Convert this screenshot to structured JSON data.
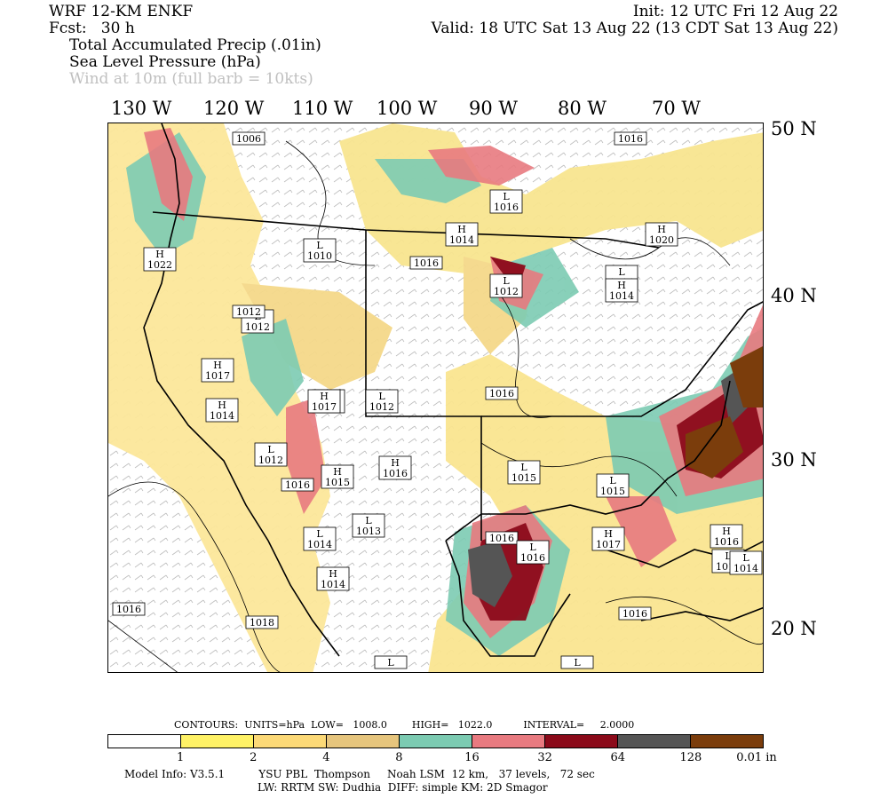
{
  "header": {
    "model": "WRF 12-KM ENKF",
    "forecast": "Fcst:   30 h",
    "init": "Init: 12 UTC Fri 12 Aug 22",
    "valid": "Valid: 18 UTC Sat 13 Aug 22 (13 CDT Sat 13 Aug 22)",
    "fields": [
      "Total Accumulated Precip (.01in)",
      "Sea Level Pressure (hPa)",
      "Wind at 10m (full barb = 10kts)"
    ]
  },
  "axes": {
    "longitudes": [
      "130 W",
      "120 W",
      "110 W",
      "100 W",
      "90 W",
      "80 W",
      "70 W"
    ],
    "latitudes": [
      "50 N",
      "40 N",
      "30 N",
      "20 N"
    ]
  },
  "pressure_centers": [
    {
      "type": "",
      "value": "1006"
    },
    {
      "type": "",
      "value": "1016"
    },
    {
      "type": "L",
      "value": "1016"
    },
    {
      "type": "H",
      "value": "1014"
    },
    {
      "type": "H",
      "value": "1020"
    },
    {
      "type": "H",
      "value": "1022"
    },
    {
      "type": "L",
      "value": "1010"
    },
    {
      "type": "",
      "value": "1016"
    },
    {
      "type": "L",
      "value": "1014"
    },
    {
      "type": "L",
      "value": "1012"
    },
    {
      "type": "L",
      "value": "1012"
    },
    {
      "type": "",
      "value": "1012"
    },
    {
      "type": "H",
      "value": "1014"
    },
    {
      "type": "H",
      "value": "1017"
    },
    {
      "type": "L",
      "value": "1012"
    },
    {
      "type": "",
      "value": "1016"
    },
    {
      "type": "H",
      "value": "1014"
    },
    {
      "type": "L",
      "value": "1012"
    },
    {
      "type": "H",
      "value": "1017"
    },
    {
      "type": "H",
      "value": "1016"
    },
    {
      "type": "L",
      "value": "1015"
    },
    {
      "type": "L",
      "value": "1015"
    },
    {
      "type": "",
      "value": "1016"
    },
    {
      "type": "H",
      "value": "1015"
    },
    {
      "type": "L",
      "value": "1013"
    },
    {
      "type": "H",
      "value": "1014"
    },
    {
      "type": "H",
      "value": "1017"
    },
    {
      "type": "",
      "value": "1016"
    },
    {
      "type": "L",
      "value": "1016"
    },
    {
      "type": "L",
      "value": "1014"
    },
    {
      "type": "",
      "value": "1016"
    },
    {
      "type": "",
      "value": "1018"
    },
    {
      "type": "",
      "value": "1016"
    },
    {
      "type": "L",
      "value": "1014"
    },
    {
      "type": "L",
      "value": ""
    },
    {
      "type": "L",
      "value": ""
    },
    {
      "type": "L",
      "value": "1012"
    },
    {
      "type": "L",
      "value": "1014"
    },
    {
      "type": "H",
      "value": "1016"
    }
  ],
  "contours_info": "CONTOURS:  UNITS=hPa  LOW=   1008.0        HIGH=   1022.0          INTERVAL=     2.0000",
  "colorbar": {
    "colors": [
      "#ffffff",
      "#fff266",
      "#fcd977",
      "#e6c57d",
      "#7ccbb2",
      "#e87a80",
      "#8b0a1a",
      "#555555",
      "#7b3d0c"
    ],
    "labels": [
      "1",
      "2",
      "4",
      "8",
      "16",
      "32",
      "64",
      "128",
      "0.01 in"
    ]
  },
  "footer": {
    "line1": "Model Info: V3.5.1          YSU PBL  Thompson     Noah LSM  12 km,   37 levels,   72 sec",
    "line2": "LW: RRTM SW: Dudhia  DIFF: simple KM: 2D Smagor"
  }
}
